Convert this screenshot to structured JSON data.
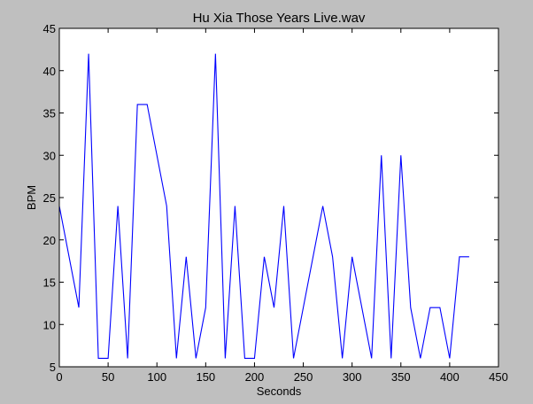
{
  "chart_data": {
    "type": "line",
    "title": "Hu Xia Those Years Live.wav",
    "xlabel": "Seconds",
    "ylabel": "BPM",
    "xlim": [
      0,
      450
    ],
    "ylim": [
      5,
      45
    ],
    "xticks": [
      0,
      50,
      100,
      150,
      200,
      250,
      300,
      350,
      400,
      450
    ],
    "yticks": [
      5,
      10,
      15,
      20,
      25,
      30,
      35,
      40,
      45
    ],
    "grid": false,
    "line_color": "#0000ff",
    "background": "#bfbfbf",
    "plot_background": "#ffffff",
    "series": [
      {
        "x": [
          0,
          20,
          30,
          40,
          50,
          60,
          70,
          80,
          90,
          110,
          120,
          130,
          140,
          150,
          160,
          170,
          180,
          190,
          200,
          210,
          220,
          230,
          240,
          270,
          280,
          290,
          300,
          320,
          330,
          340,
          350,
          360,
          370,
          380,
          390,
          400,
          410,
          420
        ],
        "y": [
          24,
          12,
          42,
          6,
          6,
          24,
          6,
          36,
          36,
          24,
          6,
          18,
          6,
          12,
          42,
          6,
          24,
          6,
          6,
          18,
          12,
          24,
          6,
          24,
          18,
          6,
          18,
          6,
          30,
          6,
          30,
          12,
          6,
          12,
          12,
          6,
          18,
          18
        ]
      }
    ]
  }
}
